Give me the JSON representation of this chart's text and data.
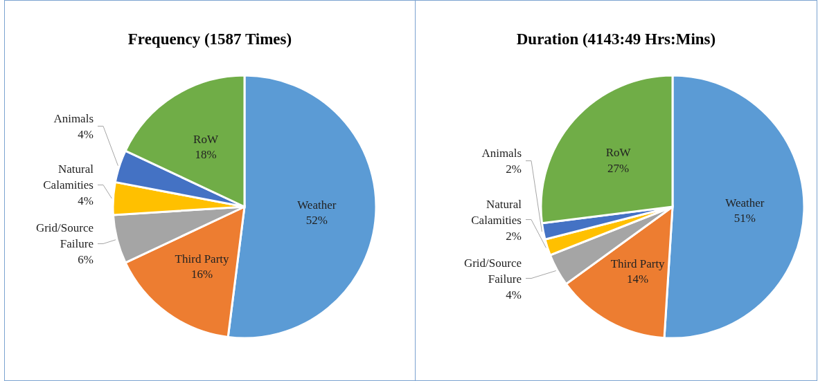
{
  "chart_data": [
    {
      "type": "pie",
      "title": "Frequency (1587 Times)",
      "categories": [
        "Weather",
        "Third Party",
        "Grid/Source Failure",
        "Natural Calamities",
        "Animals",
        "RoW"
      ],
      "values": [
        52,
        16,
        6,
        4,
        4,
        18
      ],
      "value_labels": [
        "52%",
        "16%",
        "6%",
        "4%",
        "4%",
        "18%"
      ],
      "colors": [
        "#5b9bd5",
        "#ed7d31",
        "#a5a5a5",
        "#ffc000",
        "#4472c4",
        "#70ad47"
      ],
      "legend": false
    },
    {
      "type": "pie",
      "title": "Duration (4143:49 Hrs:Mins)",
      "categories": [
        "Weather",
        "Third Party",
        "Grid/Source Failure",
        "Natural Calamities",
        "Animals",
        "RoW"
      ],
      "values": [
        51,
        14,
        4,
        2,
        2,
        27
      ],
      "value_labels": [
        "51%",
        "14%",
        "4%",
        "2%",
        "2%",
        "27%"
      ],
      "colors": [
        "#5b9bd5",
        "#ed7d31",
        "#a5a5a5",
        "#ffc000",
        "#4472c4",
        "#70ad47"
      ],
      "legend": false
    }
  ]
}
